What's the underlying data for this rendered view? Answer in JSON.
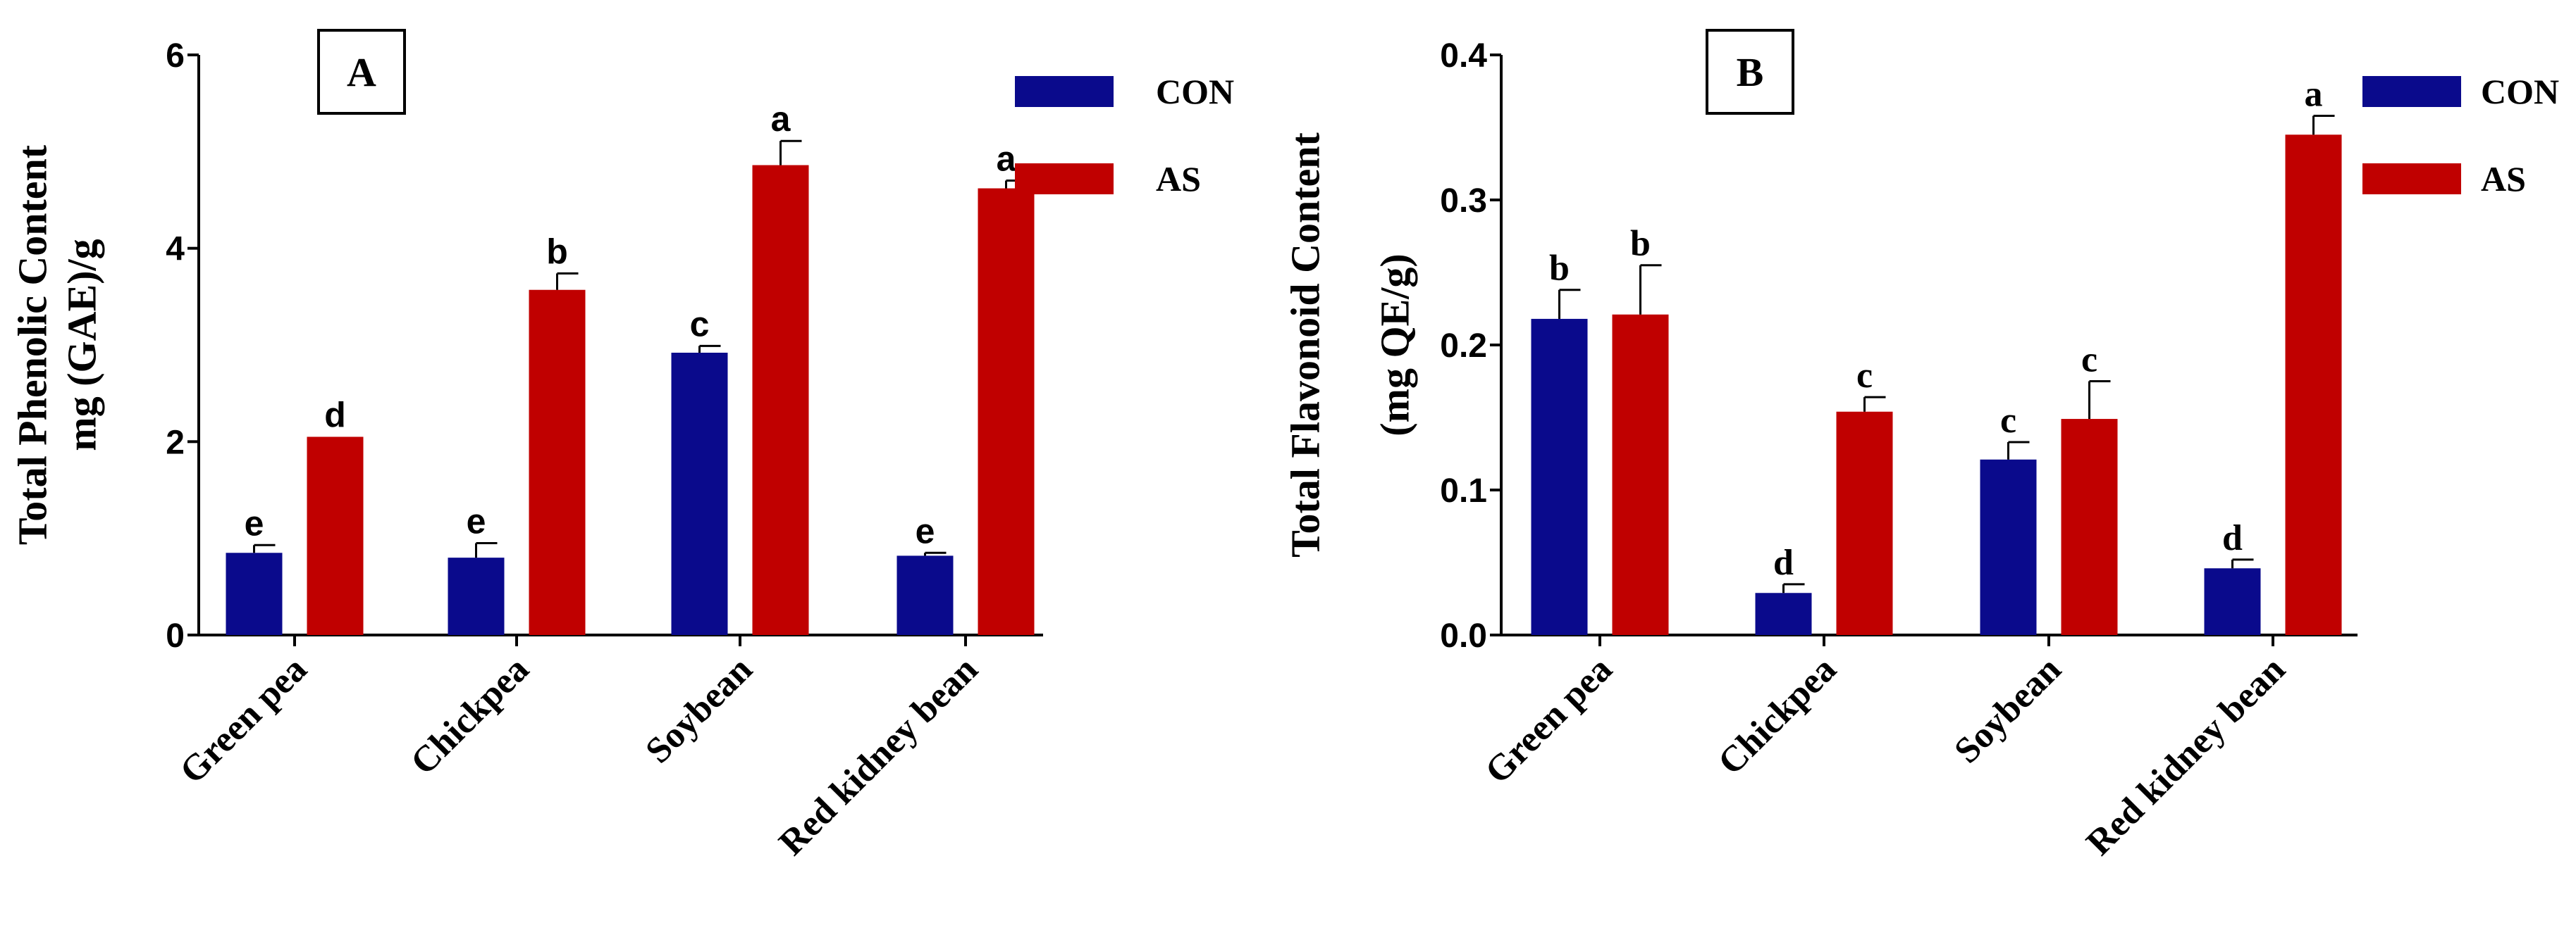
{
  "colors": {
    "con": "#0a0a8c",
    "as": "#c00000",
    "axis": "#000000"
  },
  "chart_data": [
    {
      "panel": "A",
      "type": "bar",
      "ylabel_lines": [
        "Total Phenolic Content",
        "mg (GAE)/g"
      ],
      "ylim": [
        0,
        6
      ],
      "yticks": [
        0,
        2,
        4,
        6
      ],
      "tick_labels": [
        "0",
        "2",
        "4",
        "6"
      ],
      "categories": [
        "Green pea",
        "Chickpea",
        "Soybean",
        "Red kidney bean"
      ],
      "legend_position": "top-right",
      "series": [
        {
          "name": "CON",
          "values": [
            0.85,
            0.8,
            2.92,
            0.82
          ],
          "errors": [
            0.08,
            0.15,
            0.07,
            0.03
          ],
          "letters": [
            "e",
            "e",
            "c",
            "e"
          ]
        },
        {
          "name": "AS",
          "values": [
            2.05,
            3.57,
            4.86,
            4.62
          ],
          "errors": [
            0.0,
            0.17,
            0.25,
            0.08
          ],
          "letters": [
            "d",
            "b",
            "a",
            "a"
          ]
        }
      ]
    },
    {
      "panel": "B",
      "type": "bar",
      "ylabel_lines": [
        "Total Flavonoid Content",
        "(mg QE/g)"
      ],
      "ylim": [
        0,
        0.4
      ],
      "yticks": [
        0,
        0.1,
        0.2,
        0.3,
        0.4
      ],
      "tick_labels": [
        "0.0",
        "0.1",
        "0.2",
        "0.3",
        "0.4"
      ],
      "categories": [
        "Green pea",
        "Chickpea",
        "Soybean",
        "Red kidney bean"
      ],
      "legend_position": "top-right",
      "series": [
        {
          "name": "CON",
          "values": [
            0.218,
            0.029,
            0.121,
            0.046
          ],
          "errors": [
            0.02,
            0.006,
            0.012,
            0.006
          ],
          "letters": [
            "b",
            "d",
            "c",
            "d"
          ]
        },
        {
          "name": "AS",
          "values": [
            0.221,
            0.154,
            0.149,
            0.345
          ],
          "errors": [
            0.034,
            0.01,
            0.026,
            0.013
          ],
          "letters": [
            "b",
            "c",
            "c",
            "a"
          ]
        }
      ]
    }
  ]
}
